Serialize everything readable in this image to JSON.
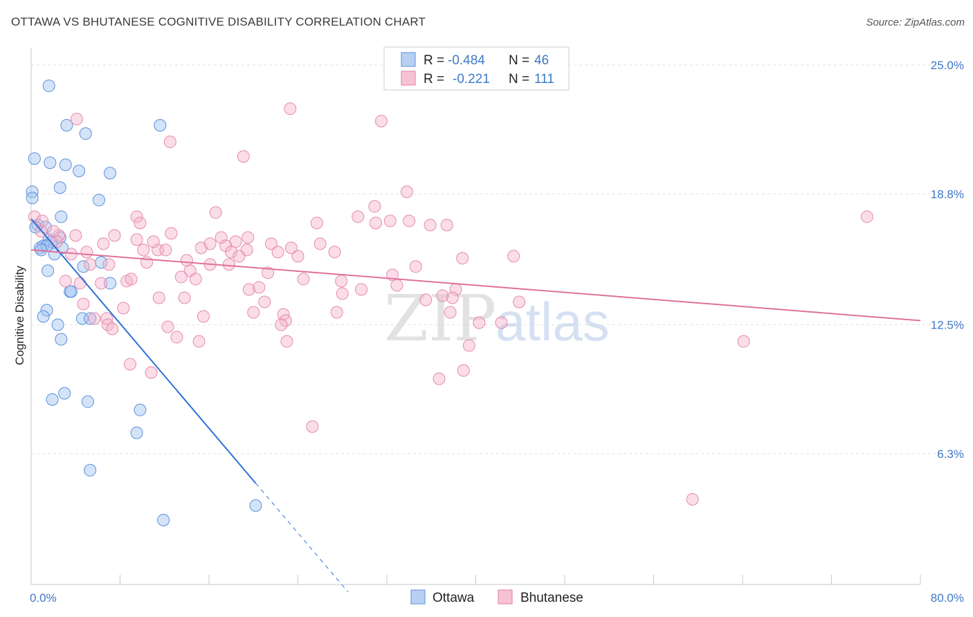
{
  "title": "OTTAWA VS BHUTANESE COGNITIVE DISABILITY CORRELATION CHART",
  "source": "Source: ZipAtlas.com",
  "chart_data": {
    "type": "scatter",
    "title": "OTTAWA VS BHUTANESE COGNITIVE DISABILITY CORRELATION CHART",
    "ylabel": "Cognitive Disability",
    "xlabel": "",
    "xlim": [
      0,
      80
    ],
    "ylim": [
      0,
      25.8
    ],
    "x_tick_labels": [
      "0.0%",
      "80.0%"
    ],
    "y_ticks": [
      6.3,
      12.5,
      18.8,
      25.0
    ],
    "y_tick_labels": [
      "6.3%",
      "12.5%",
      "18.8%",
      "25.0%"
    ],
    "grid": true,
    "legend_position": "top-center",
    "watermark": "ZIPatlas",
    "colors": {
      "Ottawa": "#4a7fd4",
      "Bhutanese": "#e0709a"
    },
    "stats": [
      {
        "series": "Ottawa",
        "R_label": "R =",
        "R": "-0.484",
        "N_label": "N =",
        "N": "46"
      },
      {
        "series": "Bhutanese",
        "R_label": "R =",
        "R": "-0.221",
        "N_label": "N =",
        "N": "111"
      }
    ],
    "series": [
      {
        "name": "Ottawa",
        "trend": {
          "x_start": 0,
          "y_start": 17.6,
          "x_solid_end": 20.2,
          "x_dash_end": 28.5,
          "slope": -0.63
        },
        "points": [
          [
            1.6,
            24.0
          ],
          [
            3.2,
            22.1
          ],
          [
            4.9,
            21.7
          ],
          [
            11.6,
            22.1
          ],
          [
            0.3,
            20.5
          ],
          [
            1.7,
            20.3
          ],
          [
            3.1,
            20.2
          ],
          [
            4.3,
            19.9
          ],
          [
            7.1,
            19.8
          ],
          [
            0.1,
            18.9
          ],
          [
            0.1,
            18.6
          ],
          [
            2.6,
            19.1
          ],
          [
            6.1,
            18.5
          ],
          [
            2.7,
            17.7
          ],
          [
            0.6,
            17.3
          ],
          [
            1.3,
            17.2
          ],
          [
            1.6,
            16.6
          ],
          [
            2.6,
            16.7
          ],
          [
            1.8,
            16.5
          ],
          [
            1.1,
            16.3
          ],
          [
            0.8,
            16.2
          ],
          [
            1.4,
            16.3
          ],
          [
            0.9,
            16.1
          ],
          [
            2.1,
            15.9
          ],
          [
            6.3,
            15.5
          ],
          [
            4.7,
            15.3
          ],
          [
            1.5,
            15.1
          ],
          [
            3.5,
            14.1
          ],
          [
            7.1,
            14.5
          ],
          [
            3.6,
            14.1
          ],
          [
            1.4,
            13.2
          ],
          [
            1.1,
            12.9
          ],
          [
            4.6,
            12.8
          ],
          [
            5.3,
            12.8
          ],
          [
            2.4,
            12.5
          ],
          [
            2.7,
            11.8
          ],
          [
            3.0,
            9.2
          ],
          [
            1.9,
            8.9
          ],
          [
            5.1,
            8.8
          ],
          [
            9.8,
            8.4
          ],
          [
            9.5,
            7.3
          ],
          [
            5.3,
            5.5
          ],
          [
            11.9,
            3.1
          ],
          [
            20.2,
            3.8
          ],
          [
            2.8,
            16.2
          ],
          [
            0.4,
            17.2
          ]
        ]
      },
      {
        "name": "Bhutanese",
        "trend": {
          "x_start": 0,
          "y_start": 16.1,
          "x_end": 80,
          "y_end": 12.7
        },
        "points": [
          [
            0.3,
            17.7
          ],
          [
            4.1,
            22.4
          ],
          [
            23.3,
            22.9
          ],
          [
            31.5,
            22.3
          ],
          [
            12.5,
            21.3
          ],
          [
            19.1,
            20.6
          ],
          [
            33.8,
            18.9
          ],
          [
            30.9,
            18.2
          ],
          [
            16.6,
            17.9
          ],
          [
            9.5,
            17.7
          ],
          [
            29.4,
            17.7
          ],
          [
            32.3,
            17.5
          ],
          [
            34.0,
            17.5
          ],
          [
            25.7,
            17.4
          ],
          [
            31.0,
            17.4
          ],
          [
            35.9,
            17.3
          ],
          [
            37.4,
            17.3
          ],
          [
            9.8,
            17.4
          ],
          [
            75.2,
            17.7
          ],
          [
            0.9,
            17.0
          ],
          [
            2.5,
            16.8
          ],
          [
            4.0,
            16.8
          ],
          [
            12.6,
            16.9
          ],
          [
            17.1,
            16.7
          ],
          [
            19.5,
            16.7
          ],
          [
            18.4,
            16.5
          ],
          [
            11.4,
            16.1
          ],
          [
            7.5,
            16.8
          ],
          [
            6.5,
            16.4
          ],
          [
            9.5,
            16.6
          ],
          [
            5.0,
            16.0
          ],
          [
            10.1,
            16.1
          ],
          [
            12.1,
            16.1
          ],
          [
            15.3,
            16.2
          ],
          [
            16.1,
            16.4
          ],
          [
            17.5,
            16.3
          ],
          [
            18.0,
            16.0
          ],
          [
            19.4,
            16.1
          ],
          [
            21.6,
            16.4
          ],
          [
            22.2,
            16.0
          ],
          [
            23.4,
            16.2
          ],
          [
            18.7,
            15.8
          ],
          [
            24.0,
            15.8
          ],
          [
            27.3,
            16.0
          ],
          [
            43.4,
            15.8
          ],
          [
            38.8,
            15.7
          ],
          [
            14.0,
            15.6
          ],
          [
            10.4,
            15.5
          ],
          [
            16.1,
            15.4
          ],
          [
            17.8,
            15.4
          ],
          [
            5.3,
            15.4
          ],
          [
            14.3,
            15.1
          ],
          [
            21.3,
            15.0
          ],
          [
            32.5,
            14.9
          ],
          [
            13.5,
            14.8
          ],
          [
            34.6,
            15.3
          ],
          [
            14.8,
            14.7
          ],
          [
            24.5,
            14.7
          ],
          [
            27.9,
            14.6
          ],
          [
            3.1,
            14.6
          ],
          [
            8.6,
            14.6
          ],
          [
            6.3,
            14.5
          ],
          [
            4.4,
            14.5
          ],
          [
            19.6,
            14.2
          ],
          [
            20.5,
            14.3
          ],
          [
            29.7,
            14.2
          ],
          [
            32.9,
            14.4
          ],
          [
            38.2,
            14.2
          ],
          [
            11.5,
            13.8
          ],
          [
            13.8,
            13.8
          ],
          [
            28.0,
            14.0
          ],
          [
            37.0,
            13.9
          ],
          [
            37.9,
            13.8
          ],
          [
            35.5,
            13.7
          ],
          [
            21.0,
            13.6
          ],
          [
            43.9,
            13.6
          ],
          [
            4.7,
            13.5
          ],
          [
            8.3,
            13.3
          ],
          [
            20.0,
            13.1
          ],
          [
            22.7,
            13.0
          ],
          [
            27.5,
            13.1
          ],
          [
            37.7,
            13.1
          ],
          [
            15.5,
            12.9
          ],
          [
            5.7,
            12.8
          ],
          [
            6.8,
            12.8
          ],
          [
            22.9,
            12.7
          ],
          [
            22.5,
            12.5
          ],
          [
            40.3,
            12.6
          ],
          [
            42.3,
            12.6
          ],
          [
            6.9,
            12.5
          ],
          [
            12.3,
            12.4
          ],
          [
            7.3,
            12.3
          ],
          [
            13.1,
            11.9
          ],
          [
            15.1,
            11.7
          ],
          [
            23.0,
            11.7
          ],
          [
            64.1,
            11.7
          ],
          [
            39.4,
            11.5
          ],
          [
            8.9,
            10.6
          ],
          [
            10.8,
            10.2
          ],
          [
            38.9,
            10.3
          ],
          [
            36.7,
            9.9
          ],
          [
            25.3,
            7.6
          ],
          [
            59.5,
            4.1
          ],
          [
            1.0,
            17.5
          ],
          [
            2.3,
            16.5
          ],
          [
            3.6,
            15.9
          ],
          [
            2.0,
            17.0
          ],
          [
            7.0,
            15.4
          ],
          [
            11.0,
            16.5
          ],
          [
            9.0,
            14.7
          ],
          [
            26.0,
            16.4
          ]
        ]
      }
    ]
  },
  "legend": {
    "items": [
      "Ottawa",
      "Bhutanese"
    ]
  }
}
